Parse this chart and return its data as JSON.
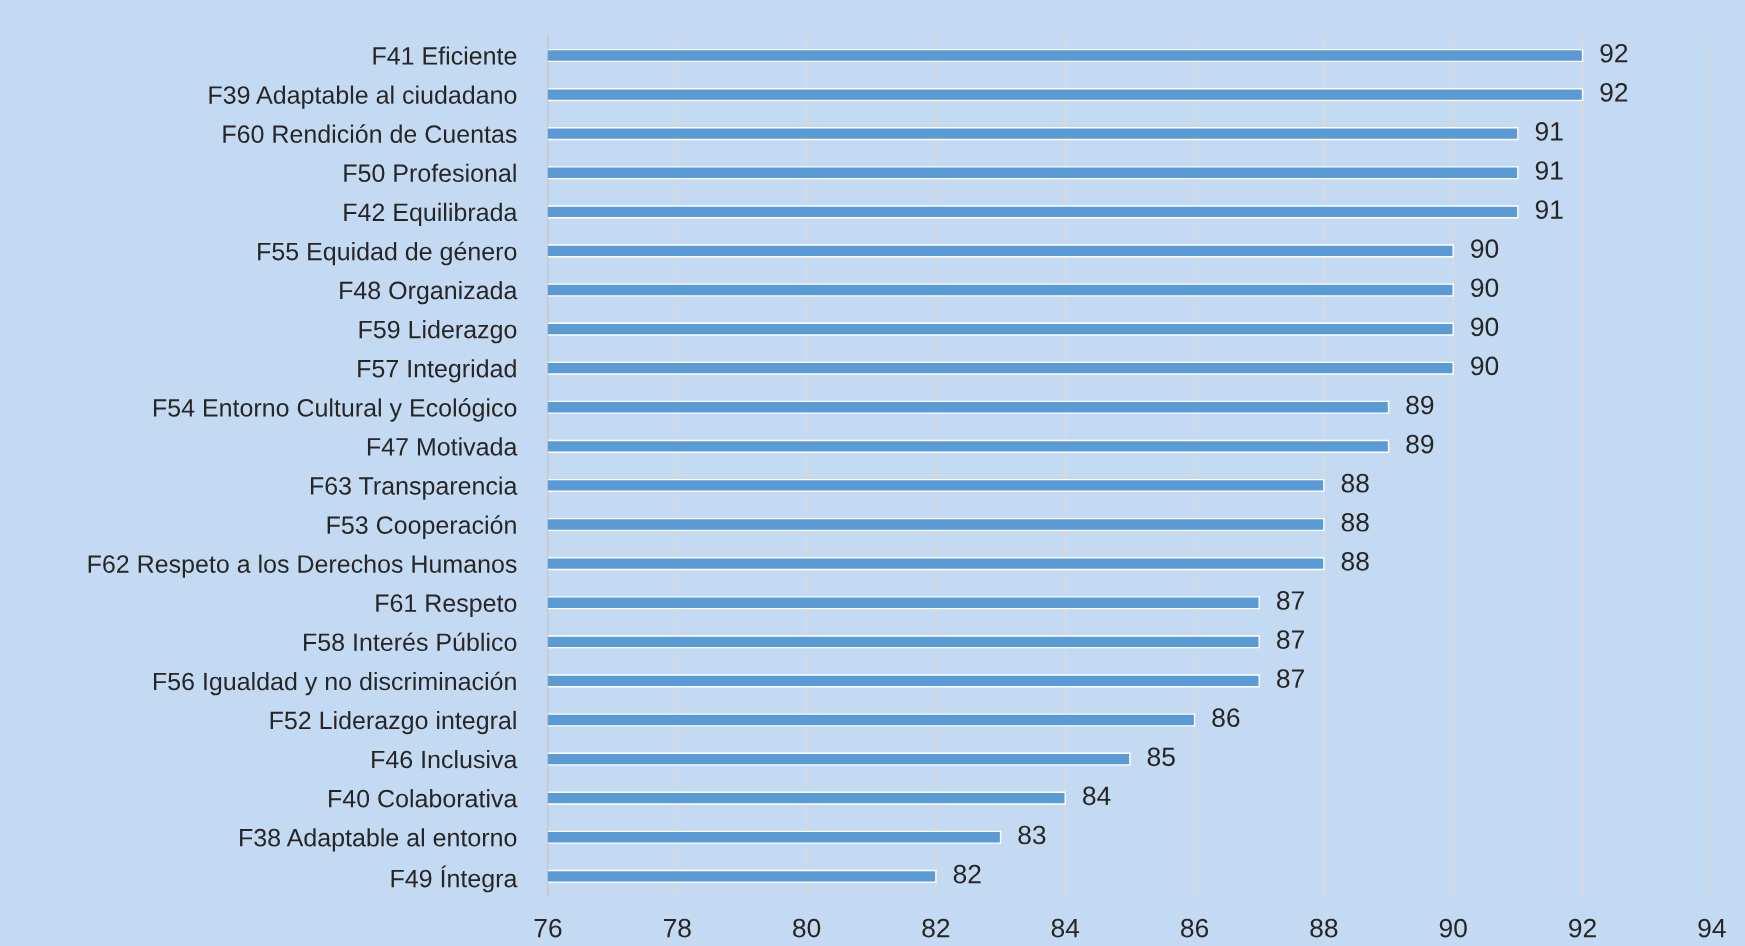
{
  "chart_data": {
    "type": "bar",
    "orientation": "horizontal",
    "categories": [
      "F41 Eficiente",
      "F39 Adaptable al ciudadano",
      "F60 Rendición de Cuentas",
      "F50 Profesional",
      "F42 Equilibrada",
      "F55 Equidad de género",
      "F48 Organizada",
      "F59 Liderazgo",
      "F57 Integridad",
      "F54 Entorno Cultural y Ecológico",
      "F47 Motivada",
      "F63 Transparencia",
      "F53 Cooperación",
      "F62 Respeto a los Derechos Humanos",
      "F61 Respeto",
      "F58 Interés Público",
      "F56 Igualdad y no discriminación",
      "F52 Liderazgo integral",
      "F46 Inclusiva",
      "F40 Colaborativa",
      "F38 Adaptable al entorno",
      "F49 Íntegra"
    ],
    "values": [
      92,
      92,
      91,
      91,
      91,
      90,
      90,
      90,
      90,
      89,
      89,
      88,
      88,
      88,
      87,
      87,
      87,
      86,
      85,
      84,
      83,
      82
    ],
    "color": "#5b9bd5",
    "xlim": [
      76,
      94
    ],
    "xticks": [
      76,
      78,
      80,
      82,
      84,
      86,
      88,
      90,
      92,
      94
    ],
    "grid": "x",
    "data_labels": true
  }
}
